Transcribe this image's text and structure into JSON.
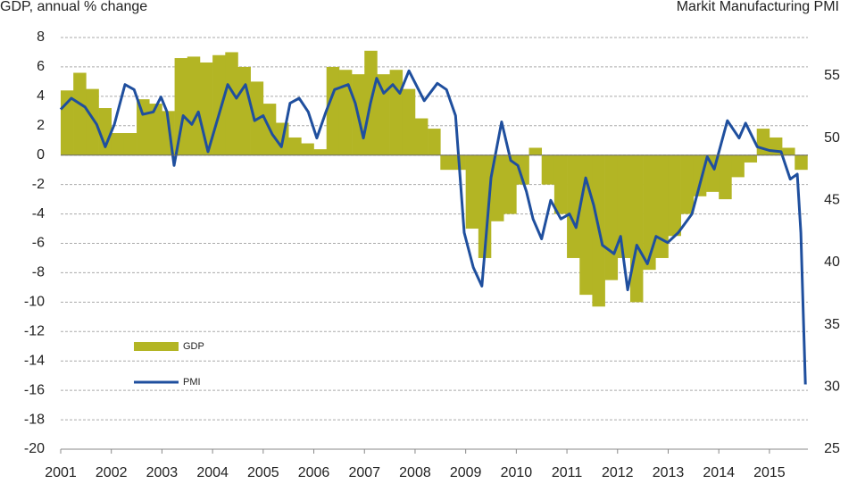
{
  "chart_data": {
    "type": "line",
    "ylabel": "GDP, annual % change",
    "y2label": "Markit Manufacturing PMI",
    "xlim": [
      2001,
      2015.76
    ],
    "xticks": [
      2001,
      2002,
      2003,
      2004,
      2005,
      2006,
      2007,
      2008,
      2009,
      2010,
      2011,
      2012,
      2013,
      2014,
      2015
    ],
    "ylim": [
      -20,
      8
    ],
    "yticks": [
      -20,
      -18,
      -16,
      -14,
      -12,
      -10,
      -8,
      -6,
      -4,
      -2,
      0,
      2,
      4,
      6,
      8
    ],
    "y2lim": [
      25,
      58.08
    ],
    "y2ticks": [
      25,
      30,
      35,
      40,
      45,
      50,
      55
    ],
    "grid": true,
    "legend": "left",
    "series": [
      {
        "name": "GDP",
        "type": "area",
        "color": "#b3b524",
        "x": [
          2001,
          2001.25,
          2001.5,
          2001.75,
          2002,
          2002.25,
          2002.5,
          2002.75,
          2003,
          2003.25,
          2003.5,
          2003.75,
          2004,
          2004.25,
          2004.5,
          2004.75,
          2005,
          2005.25,
          2005.5,
          2005.75,
          2006,
          2006.25,
          2006.5,
          2006.75,
          2007,
          2007.25,
          2007.5,
          2007.75,
          2008,
          2008.25,
          2008.5,
          2008.75,
          2009,
          2009.25,
          2009.5,
          2009.75,
          2010,
          2010.25,
          2010.5,
          2010.75,
          2011,
          2011.25,
          2011.5,
          2011.75,
          2012,
          2012.25,
          2012.5,
          2012.75,
          2013,
          2013.25,
          2013.5,
          2013.75,
          2014,
          2014.25,
          2014.5,
          2014.75,
          2015,
          2015.25,
          2015.5
        ],
        "values": [
          4.4,
          5.6,
          4.5,
          3.2,
          1.5,
          1.5,
          3.8,
          3.5,
          3,
          6.6,
          6.7,
          6.3,
          6.8,
          7,
          6,
          5,
          3.5,
          2.2,
          1.2,
          0.8,
          0.4,
          6,
          5.8,
          5.5,
          7.1,
          5.5,
          5.8,
          4.5,
          2.5,
          1.8,
          -1,
          -1,
          -5,
          -7,
          -4.5,
          -4,
          -2,
          0.5,
          -2,
          -4,
          -7,
          -9.5,
          -10.3,
          -8.5,
          -7,
          -10,
          -7.8,
          -7,
          -5.5,
          -4,
          -2.8,
          -2.5,
          -3,
          -1.5,
          -0.5,
          1.8,
          1.2,
          0.5,
          -1
        ]
      },
      {
        "name": "PMI",
        "type": "line",
        "axis": "y2",
        "color": "#1f4f9e",
        "x": [
          2001,
          2001.21,
          2001.48,
          2001.71,
          2001.88,
          2002.06,
          2002.27,
          2002.45,
          2002.62,
          2002.83,
          2002.98,
          2003.1,
          2003.24,
          2003.42,
          2003.59,
          2003.72,
          2003.91,
          2004.12,
          2004.3,
          2004.47,
          2004.65,
          2004.83,
          2005,
          2005.18,
          2005.36,
          2005.53,
          2005.71,
          2005.89,
          2006.06,
          2006.24,
          2006.41,
          2006.68,
          2006.82,
          2006.98,
          2007.12,
          2007.24,
          2007.38,
          2007.56,
          2007.7,
          2007.88,
          2008.18,
          2008.44,
          2008.62,
          2008.8,
          2008.97,
          2009.15,
          2009.32,
          2009.5,
          2009.71,
          2009.89,
          2010.03,
          2010.2,
          2010.33,
          2010.5,
          2010.68,
          2010.88,
          2011.05,
          2011.18,
          2011.37,
          2011.53,
          2011.7,
          2011.93,
          2012.06,
          2012.2,
          2012.38,
          2012.59,
          2012.76,
          2012.99,
          2013.2,
          2013.47,
          2013.77,
          2013.91,
          2014.17,
          2014.4,
          2014.53,
          2014.76,
          2015,
          2015.23,
          2015.41,
          2015.55,
          2015.62,
          2015.71
        ],
        "values": [
          52.3,
          53.2,
          52.5,
          51.1,
          49.3,
          51.1,
          54.3,
          53.9,
          51.9,
          52.1,
          53.3,
          52.1,
          47.8,
          51.8,
          51.1,
          52.1,
          48.9,
          51.8,
          54.3,
          53.2,
          54.3,
          51.4,
          51.8,
          50.3,
          49.3,
          52.8,
          53.2,
          52.1,
          50,
          52.1,
          53.9,
          54.3,
          52.8,
          50,
          52.8,
          54.8,
          53.6,
          54.3,
          53.6,
          55.4,
          53,
          54.4,
          53.9,
          51.8,
          42.4,
          39.6,
          38.1,
          46.8,
          51.3,
          48.2,
          47.8,
          45.7,
          43.5,
          41.9,
          45,
          43.5,
          43.9,
          42.8,
          46.8,
          44.6,
          41.4,
          40.7,
          42.1,
          37.8,
          41.4,
          39.9,
          42.1,
          41.6,
          42.4,
          43.9,
          48.5,
          47.5,
          51.4,
          50,
          51.2,
          49.3,
          49,
          48.9,
          46.7,
          47.1,
          42.4,
          30.2
        ]
      }
    ]
  }
}
